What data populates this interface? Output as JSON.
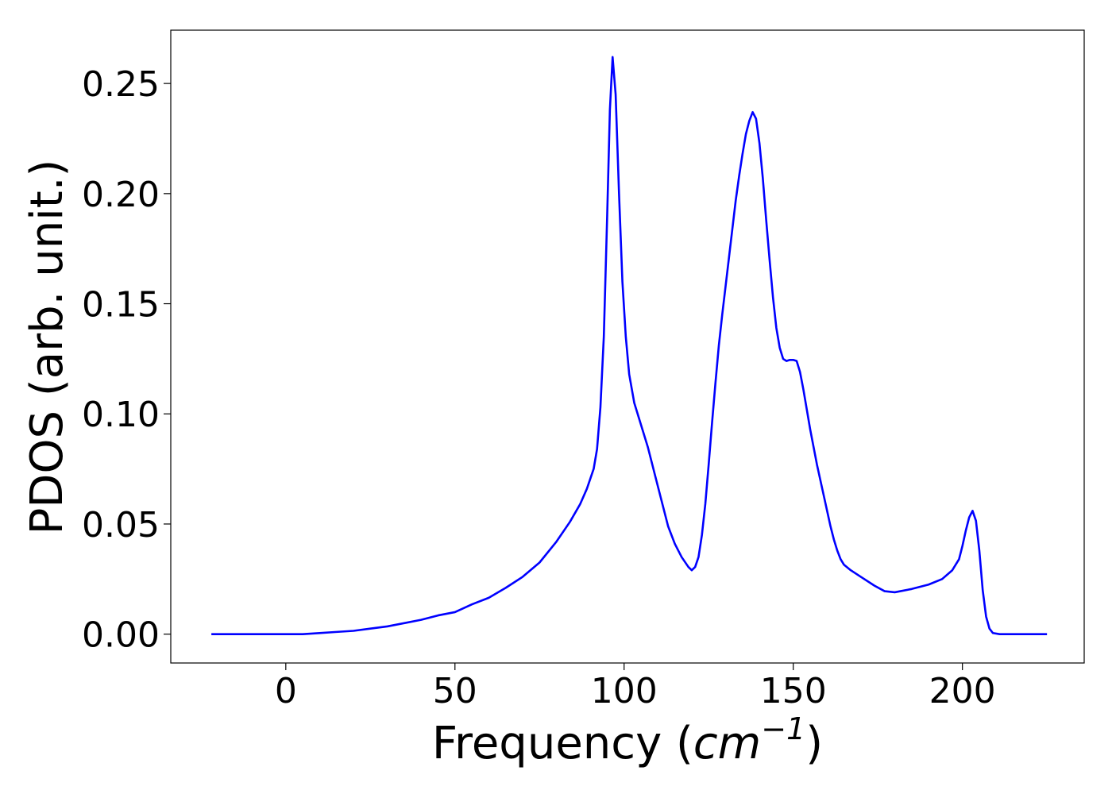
{
  "chart_data": {
    "type": "line",
    "title": "",
    "xlabel": {
      "prefix": "Frequency (",
      "unit": "cm",
      "exponent": "−1",
      "suffix": ")"
    },
    "ylabel": "PDOS (arb. unit.)",
    "xlim": [
      -34,
      236
    ],
    "ylim": [
      -0.0131,
      0.2742
    ],
    "xticks": [
      {
        "value": 0,
        "label": "0"
      },
      {
        "value": 50,
        "label": "50"
      },
      {
        "value": 100,
        "label": "100"
      },
      {
        "value": 150,
        "label": "150"
      },
      {
        "value": 200,
        "label": "200"
      }
    ],
    "yticks": [
      {
        "value": 0.0,
        "label": "0.00"
      },
      {
        "value": 0.05,
        "label": "0.05"
      },
      {
        "value": 0.1,
        "label": "0.10"
      },
      {
        "value": 0.15,
        "label": "0.15"
      },
      {
        "value": 0.2,
        "label": "0.20"
      },
      {
        "value": 0.25,
        "label": "0.25"
      }
    ],
    "grid": false,
    "legend": null,
    "series": [
      {
        "color": "#0000ff",
        "points": [
          [
            -22,
            0.0
          ],
          [
            0,
            0.0
          ],
          [
            5,
            0.0
          ],
          [
            10,
            0.0005
          ],
          [
            15,
            0.001
          ],
          [
            20,
            0.0015
          ],
          [
            25,
            0.0025
          ],
          [
            30,
            0.0035
          ],
          [
            35,
            0.005
          ],
          [
            40,
            0.0065
          ],
          [
            45,
            0.0085
          ],
          [
            50,
            0.01
          ],
          [
            55,
            0.0135
          ],
          [
            60,
            0.0165
          ],
          [
            65,
            0.021
          ],
          [
            70,
            0.026
          ],
          [
            75,
            0.0325
          ],
          [
            80,
            0.042
          ],
          [
            84,
            0.051
          ],
          [
            87,
            0.059
          ],
          [
            89,
            0.066
          ],
          [
            91,
            0.075
          ],
          [
            92,
            0.084
          ],
          [
            93,
            0.103
          ],
          [
            94,
            0.135
          ],
          [
            95,
            0.19
          ],
          [
            95.8,
            0.238
          ],
          [
            96.6,
            0.262
          ],
          [
            97.5,
            0.245
          ],
          [
            98.5,
            0.2
          ],
          [
            99.5,
            0.16
          ],
          [
            100.5,
            0.135
          ],
          [
            101.5,
            0.118
          ],
          [
            103,
            0.105
          ],
          [
            105,
            0.095
          ],
          [
            107,
            0.085
          ],
          [
            109,
            0.073
          ],
          [
            111,
            0.061
          ],
          [
            113,
            0.049
          ],
          [
            115,
            0.041
          ],
          [
            117,
            0.035
          ],
          [
            119,
            0.0305
          ],
          [
            120,
            0.029
          ],
          [
            121,
            0.0305
          ],
          [
            122,
            0.035
          ],
          [
            123,
            0.045
          ],
          [
            124,
            0.059
          ],
          [
            125,
            0.077
          ],
          [
            126,
            0.096
          ],
          [
            127,
            0.114
          ],
          [
            128,
            0.131
          ],
          [
            129,
            0.145
          ],
          [
            130,
            0.158
          ],
          [
            131,
            0.171
          ],
          [
            132,
            0.184
          ],
          [
            133,
            0.197
          ],
          [
            134,
            0.208
          ],
          [
            135,
            0.218
          ],
          [
            136,
            0.227
          ],
          [
            137,
            0.233
          ],
          [
            138,
            0.237
          ],
          [
            139,
            0.234
          ],
          [
            140,
            0.223
          ],
          [
            141,
            0.207
          ],
          [
            142,
            0.188
          ],
          [
            143,
            0.17
          ],
          [
            144,
            0.153
          ],
          [
            145,
            0.139
          ],
          [
            146,
            0.13
          ],
          [
            147,
            0.125
          ],
          [
            148,
            0.124
          ],
          [
            149,
            0.1245
          ],
          [
            150,
            0.1245
          ],
          [
            151,
            0.124
          ],
          [
            152,
            0.119
          ],
          [
            153,
            0.111
          ],
          [
            154,
            0.102
          ],
          [
            155,
            0.093
          ],
          [
            156,
            0.085
          ],
          [
            157,
            0.077
          ],
          [
            158,
            0.07
          ],
          [
            159,
            0.063
          ],
          [
            160,
            0.056
          ],
          [
            161,
            0.049
          ],
          [
            162,
            0.043
          ],
          [
            163,
            0.038
          ],
          [
            164,
            0.034
          ],
          [
            165,
            0.0315
          ],
          [
            167,
            0.029
          ],
          [
            170,
            0.026
          ],
          [
            174,
            0.022
          ],
          [
            177,
            0.0195
          ],
          [
            180,
            0.019
          ],
          [
            185,
            0.0205
          ],
          [
            190,
            0.0225
          ],
          [
            194,
            0.025
          ],
          [
            197,
            0.029
          ],
          [
            199,
            0.034
          ],
          [
            200,
            0.04
          ],
          [
            201,
            0.047
          ],
          [
            202,
            0.053
          ],
          [
            203,
            0.056
          ],
          [
            204,
            0.0515
          ],
          [
            205,
            0.038
          ],
          [
            206,
            0.02
          ],
          [
            207,
            0.008
          ],
          [
            208,
            0.0025
          ],
          [
            209,
            0.0005
          ],
          [
            211,
            0.0
          ],
          [
            225,
            0.0
          ]
        ]
      }
    ]
  }
}
